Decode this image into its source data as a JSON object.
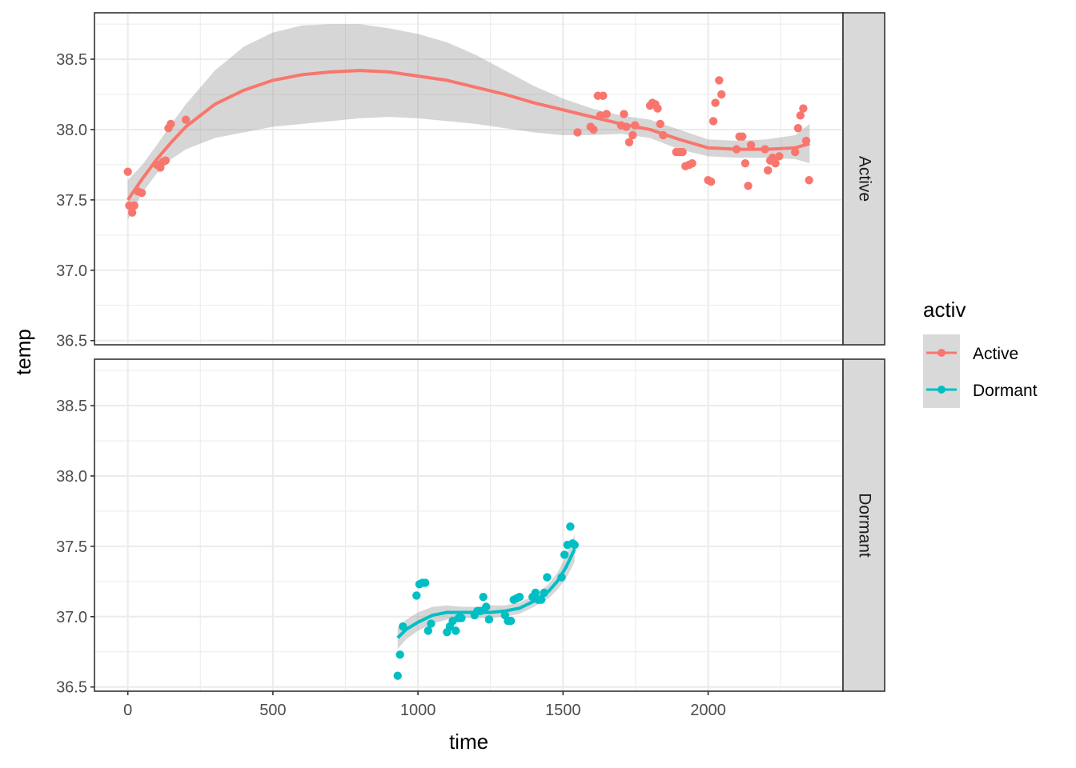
{
  "chart_data": {
    "type": "scatter",
    "xlabel": "time",
    "ylabel": "temp",
    "xlim": [
      -115,
      2465
    ],
    "ylim": [
      36.47,
      38.83
    ],
    "x_ticks": [
      0,
      500,
      1000,
      1500,
      2000
    ],
    "x_tick_labels": [
      "0",
      "500",
      "1000",
      "1500",
      "2000"
    ],
    "y_ticks": [
      36.5,
      37.0,
      37.5,
      38.0,
      38.5
    ],
    "y_tick_labels": [
      "36.5",
      "37.0",
      "37.5",
      "38.0",
      "38.5"
    ],
    "grid": true,
    "legend": {
      "title": "activ",
      "position": "right"
    },
    "series": [
      {
        "name": "Active",
        "color": "#F8766D",
        "points": [
          [
            0,
            37.7
          ],
          [
            5,
            37.46
          ],
          [
            15,
            37.41
          ],
          [
            22,
            37.46
          ],
          [
            35,
            37.56
          ],
          [
            48,
            37.55
          ],
          [
            100,
            37.75
          ],
          [
            112,
            37.73
          ],
          [
            120,
            37.77
          ],
          [
            130,
            37.78
          ],
          [
            140,
            38.01
          ],
          [
            148,
            38.04
          ],
          [
            200,
            38.07
          ],
          [
            1550,
            37.98
          ],
          [
            1595,
            38.02
          ],
          [
            1605,
            38.0
          ],
          [
            1620,
            38.24
          ],
          [
            1628,
            38.1
          ],
          [
            1638,
            38.24
          ],
          [
            1650,
            38.11
          ],
          [
            1700,
            38.03
          ],
          [
            1710,
            38.11
          ],
          [
            1718,
            38.02
          ],
          [
            1728,
            37.91
          ],
          [
            1740,
            37.96
          ],
          [
            1748,
            38.03
          ],
          [
            1800,
            38.17
          ],
          [
            1808,
            38.19
          ],
          [
            1818,
            38.18
          ],
          [
            1826,
            38.15
          ],
          [
            1835,
            38.04
          ],
          [
            1845,
            37.96
          ],
          [
            1890,
            37.84
          ],
          [
            1902,
            37.84
          ],
          [
            1912,
            37.84
          ],
          [
            1922,
            37.74
          ],
          [
            1935,
            37.75
          ],
          [
            1945,
            37.76
          ],
          [
            2000,
            37.64
          ],
          [
            2010,
            37.63
          ],
          [
            2018,
            38.06
          ],
          [
            2025,
            38.19
          ],
          [
            2038,
            38.35
          ],
          [
            2046,
            38.25
          ],
          [
            2098,
            37.86
          ],
          [
            2108,
            37.95
          ],
          [
            2118,
            37.95
          ],
          [
            2128,
            37.76
          ],
          [
            2138,
            37.6
          ],
          [
            2148,
            37.89
          ],
          [
            2196,
            37.86
          ],
          [
            2206,
            37.71
          ],
          [
            2214,
            37.78
          ],
          [
            2222,
            37.8
          ],
          [
            2232,
            37.76
          ],
          [
            2245,
            37.81
          ],
          [
            2300,
            37.84
          ],
          [
            2310,
            38.01
          ],
          [
            2318,
            38.1
          ],
          [
            2328,
            38.15
          ],
          [
            2338,
            37.92
          ],
          [
            2348,
            37.64
          ]
        ],
        "smooth": [
          [
            0,
            37.5
          ],
          [
            50,
            37.65
          ],
          [
            100,
            37.79
          ],
          [
            150,
            37.91
          ],
          [
            200,
            38.02
          ],
          [
            300,
            38.18
          ],
          [
            400,
            38.28
          ],
          [
            500,
            38.35
          ],
          [
            600,
            38.39
          ],
          [
            700,
            38.41
          ],
          [
            800,
            38.42
          ],
          [
            900,
            38.41
          ],
          [
            1000,
            38.38
          ],
          [
            1100,
            38.35
          ],
          [
            1200,
            38.3
          ],
          [
            1300,
            38.25
          ],
          [
            1400,
            38.19
          ],
          [
            1500,
            38.14
          ],
          [
            1600,
            38.09
          ],
          [
            1700,
            38.04
          ],
          [
            1800,
            38.0
          ],
          [
            1900,
            37.93
          ],
          [
            2000,
            37.87
          ],
          [
            2100,
            37.86
          ],
          [
            2200,
            37.86
          ],
          [
            2300,
            37.87
          ],
          [
            2350,
            37.9
          ]
        ],
        "band_upper": [
          [
            0,
            37.64
          ],
          [
            50,
            37.75
          ],
          [
            100,
            37.89
          ],
          [
            150,
            38.04
          ],
          [
            200,
            38.18
          ],
          [
            300,
            38.42
          ],
          [
            400,
            38.59
          ],
          [
            500,
            38.69
          ],
          [
            600,
            38.74
          ],
          [
            700,
            38.75
          ],
          [
            800,
            38.75
          ],
          [
            900,
            38.72
          ],
          [
            1000,
            38.68
          ],
          [
            1100,
            38.62
          ],
          [
            1200,
            38.53
          ],
          [
            1300,
            38.42
          ],
          [
            1400,
            38.31
          ],
          [
            1500,
            38.22
          ],
          [
            1600,
            38.15
          ],
          [
            1700,
            38.1
          ],
          [
            1800,
            38.07
          ],
          [
            1900,
            38.0
          ],
          [
            2000,
            37.93
          ],
          [
            2100,
            37.92
          ],
          [
            2200,
            37.93
          ],
          [
            2300,
            37.96
          ],
          [
            2350,
            38.04
          ]
        ],
        "band_lower": [
          [
            0,
            37.36
          ],
          [
            50,
            37.55
          ],
          [
            100,
            37.69
          ],
          [
            150,
            37.79
          ],
          [
            200,
            37.86
          ],
          [
            300,
            37.94
          ],
          [
            400,
            37.98
          ],
          [
            500,
            38.02
          ],
          [
            600,
            38.04
          ],
          [
            700,
            38.06
          ],
          [
            800,
            38.08
          ],
          [
            900,
            38.09
          ],
          [
            1000,
            38.08
          ],
          [
            1100,
            38.06
          ],
          [
            1200,
            38.04
          ],
          [
            1300,
            38.01
          ],
          [
            1400,
            37.98
          ],
          [
            1500,
            37.96
          ],
          [
            1600,
            37.96
          ],
          [
            1700,
            37.97
          ],
          [
            1800,
            37.94
          ],
          [
            1900,
            37.86
          ],
          [
            2000,
            37.81
          ],
          [
            2100,
            37.8
          ],
          [
            2200,
            37.8
          ],
          [
            2300,
            37.79
          ],
          [
            2350,
            37.76
          ]
        ]
      },
      {
        "name": "Dormant",
        "color": "#00BFC4",
        "points": [
          [
            930,
            36.58
          ],
          [
            938,
            36.73
          ],
          [
            948,
            36.93
          ],
          [
            995,
            37.15
          ],
          [
            1005,
            37.23
          ],
          [
            1015,
            37.24
          ],
          [
            1025,
            37.24
          ],
          [
            1035,
            36.9
          ],
          [
            1045,
            36.95
          ],
          [
            1100,
            36.89
          ],
          [
            1110,
            36.93
          ],
          [
            1120,
            36.97
          ],
          [
            1130,
            36.9
          ],
          [
            1140,
            36.99
          ],
          [
            1150,
            36.99
          ],
          [
            1195,
            37.01
          ],
          [
            1205,
            37.04
          ],
          [
            1215,
            37.04
          ],
          [
            1225,
            37.14
          ],
          [
            1235,
            37.07
          ],
          [
            1245,
            36.98
          ],
          [
            1300,
            37.01
          ],
          [
            1310,
            36.97
          ],
          [
            1320,
            36.97
          ],
          [
            1330,
            37.12
          ],
          [
            1340,
            37.13
          ],
          [
            1350,
            37.14
          ],
          [
            1395,
            37.14
          ],
          [
            1405,
            37.17
          ],
          [
            1415,
            37.12
          ],
          [
            1425,
            37.12
          ],
          [
            1435,
            37.17
          ],
          [
            1445,
            37.28
          ],
          [
            1495,
            37.28
          ],
          [
            1505,
            37.44
          ],
          [
            1515,
            37.51
          ],
          [
            1525,
            37.64
          ],
          [
            1533,
            37.52
          ],
          [
            1540,
            37.51
          ]
        ],
        "smooth": [
          [
            930,
            36.85
          ],
          [
            960,
            36.91
          ],
          [
            1000,
            36.96
          ],
          [
            1050,
            37.01
          ],
          [
            1100,
            37.03
          ],
          [
            1150,
            37.03
          ],
          [
            1200,
            37.03
          ],
          [
            1250,
            37.03
          ],
          [
            1300,
            37.04
          ],
          [
            1350,
            37.06
          ],
          [
            1400,
            37.11
          ],
          [
            1450,
            37.18
          ],
          [
            1480,
            37.25
          ],
          [
            1510,
            37.35
          ],
          [
            1540,
            37.48
          ]
        ],
        "band_upper": [
          [
            930,
            36.92
          ],
          [
            960,
            36.98
          ],
          [
            1000,
            37.03
          ],
          [
            1050,
            37.07
          ],
          [
            1100,
            37.08
          ],
          [
            1150,
            37.07
          ],
          [
            1200,
            37.07
          ],
          [
            1250,
            37.08
          ],
          [
            1300,
            37.08
          ],
          [
            1350,
            37.1
          ],
          [
            1400,
            37.15
          ],
          [
            1450,
            37.23
          ],
          [
            1480,
            37.31
          ],
          [
            1510,
            37.43
          ],
          [
            1540,
            37.58
          ]
        ],
        "band_lower": [
          [
            930,
            36.77
          ],
          [
            960,
            36.84
          ],
          [
            1000,
            36.9
          ],
          [
            1050,
            36.95
          ],
          [
            1100,
            36.98
          ],
          [
            1150,
            36.99
          ],
          [
            1200,
            36.99
          ],
          [
            1250,
            36.99
          ],
          [
            1300,
            37.0
          ],
          [
            1350,
            37.02
          ],
          [
            1400,
            37.07
          ],
          [
            1450,
            37.13
          ],
          [
            1480,
            37.19
          ],
          [
            1510,
            37.27
          ],
          [
            1540,
            37.39
          ]
        ]
      }
    ],
    "facets": [
      {
        "label": "Active",
        "series": "Active"
      },
      {
        "label": "Dormant",
        "series": "Dormant"
      }
    ]
  }
}
